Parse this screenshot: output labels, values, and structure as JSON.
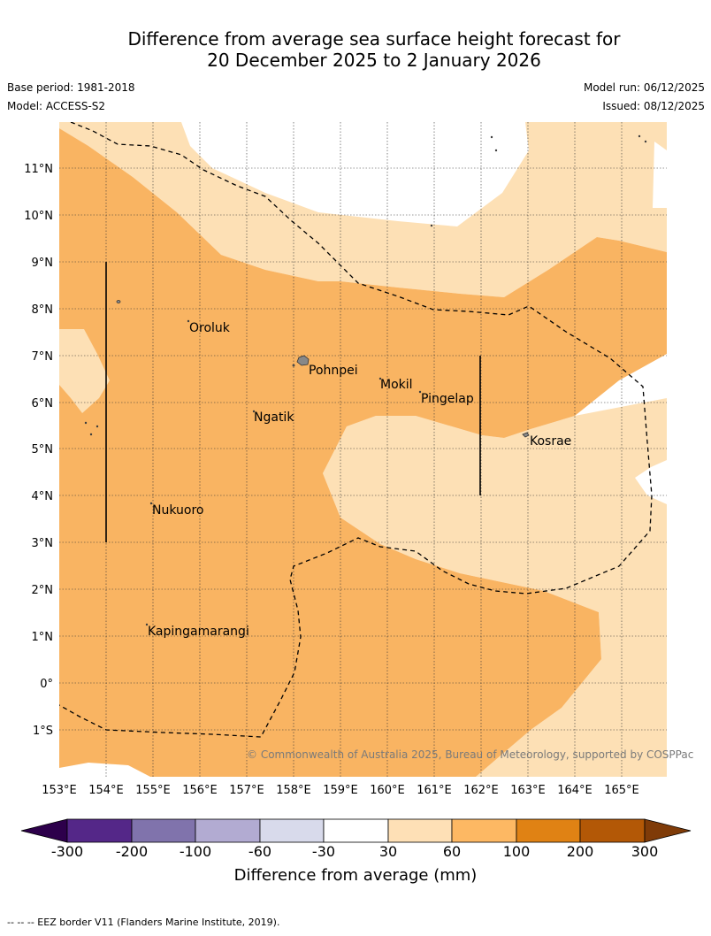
{
  "header": {
    "title_line1": "Difference from average sea surface height forecast for",
    "title_line2": "20 December 2025 to 2 January 2026",
    "base_period": "Base period: 1981-2018",
    "model": "Model: ACCESS-S2",
    "model_run": "Model run: 06/12/2025",
    "issued": "Issued: 08/12/2025"
  },
  "map": {
    "lon_labels": [
      "153°E",
      "154°E",
      "155°E",
      "156°E",
      "157°E",
      "158°E",
      "159°E",
      "160°E",
      "161°E",
      "162°E",
      "163°E",
      "164°E",
      "165°E"
    ],
    "lat_labels": [
      "11°N",
      "10°N",
      "9°N",
      "8°N",
      "7°N",
      "6°N",
      "5°N",
      "4°N",
      "3°N",
      "2°N",
      "1°N",
      "0°",
      "1°S"
    ],
    "places": [
      "Oroluk",
      "Pohnpei",
      "Mokil",
      "Pingelap",
      "Ngatik",
      "Kosrae",
      "Nukuoro",
      "Kapingamarangi"
    ],
    "copyright": "© Commonwealth of Australia 2025, Bureau of Meteorology, supported by COSPPac",
    "colors": {
      "30_60": "#fde0b5",
      "60_100": "#f9b462",
      "land": "#888888",
      "ocean_low": "#ffffff"
    }
  },
  "colorbar": {
    "ticks": [
      "-300",
      "-200",
      "-100",
      "-60",
      "-30",
      "30",
      "60",
      "100",
      "200",
      "300"
    ],
    "label": "Difference from average (mm)",
    "colors": [
      "#2d004b",
      "#542788",
      "#8073ac",
      "#b2abd2",
      "#d8daeb",
      "#ffffff",
      "#fee0b6",
      "#fdb863",
      "#e08214",
      "#b35806",
      "#7f3b08"
    ]
  },
  "footnote": "--  --  -- EEZ border V11 (Flanders Marine Institute, 2019)."
}
